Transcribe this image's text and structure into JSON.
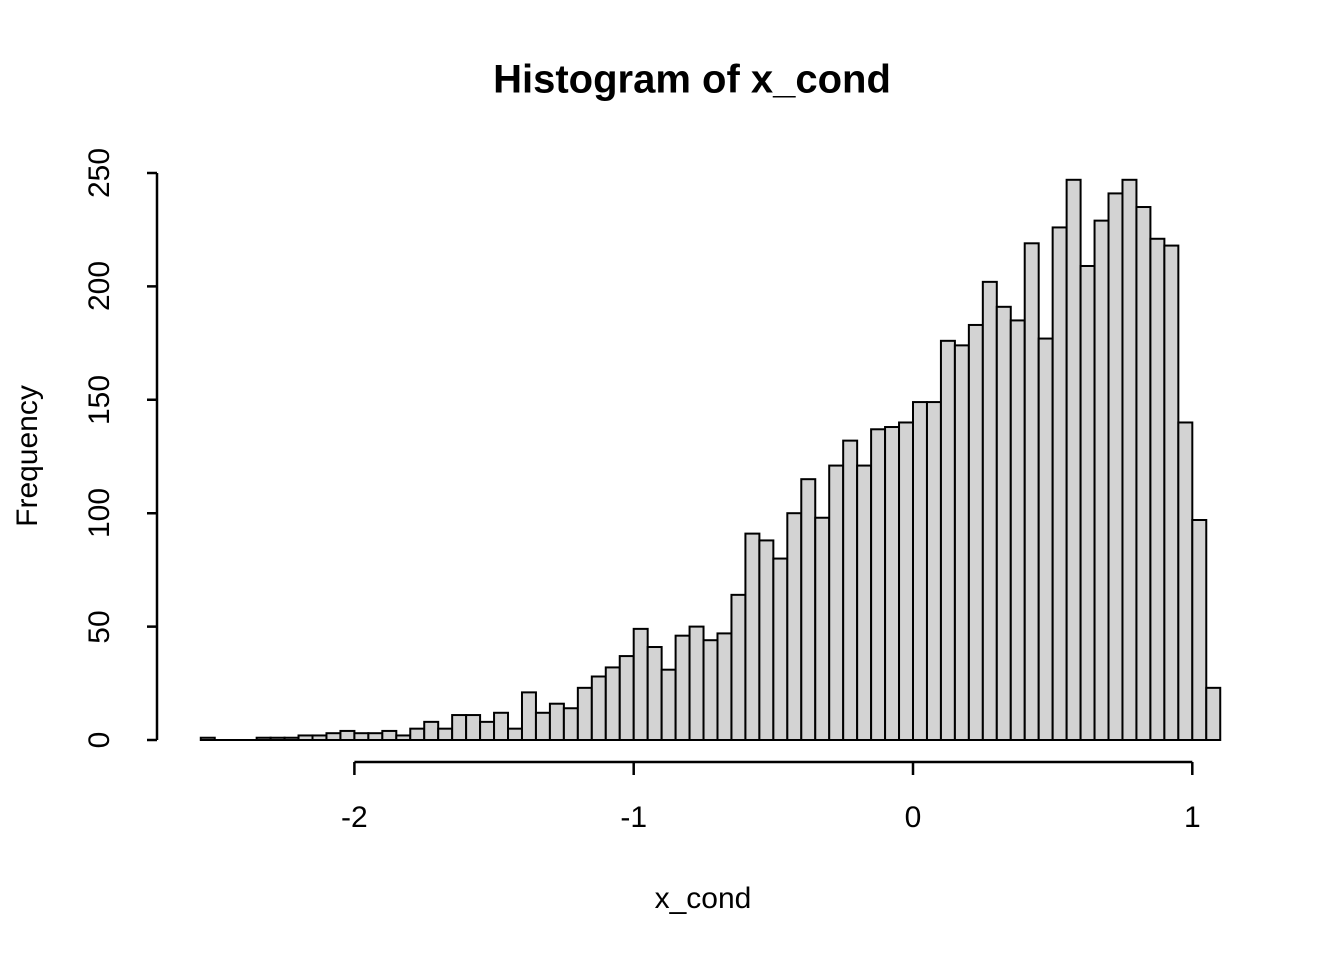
{
  "title": "Histogram of x_cond",
  "x_axis": {
    "label": "x_cond",
    "ticks": [
      "-2",
      "-1",
      "0",
      "1"
    ],
    "tick_values": [
      -2,
      -1,
      0,
      1
    ]
  },
  "y_axis": {
    "label": "Frequency",
    "ticks": [
      "0",
      "50",
      "100",
      "150",
      "200",
      "250"
    ],
    "tick_values": [
      0,
      50,
      100,
      150,
      200,
      250
    ]
  },
  "colors": {
    "background": "#ffffff",
    "bar_fill": "#d3d3d3",
    "bar_border": "#000000",
    "axis": "#000000",
    "text": "#000000"
  },
  "chart_data": {
    "type": "bar",
    "title": "Histogram of x_cond",
    "xlabel": "x_cond",
    "ylabel": "Frequency",
    "bin_start": -2.55,
    "bin_width": 0.05,
    "xlim": [
      -2.55,
      1.1
    ],
    "ylim": [
      0,
      250
    ],
    "x_ticks": [
      -2,
      -1,
      0,
      1
    ],
    "y_ticks": [
      0,
      50,
      100,
      150,
      200,
      250
    ],
    "grid": false,
    "legend": false,
    "counts": [
      1,
      0,
      0,
      0,
      1,
      1,
      1,
      2,
      2,
      3,
      4,
      3,
      3,
      4,
      2,
      5,
      8,
      5,
      11,
      11,
      8,
      12,
      5,
      21,
      12,
      16,
      14,
      23,
      28,
      32,
      37,
      49,
      41,
      31,
      46,
      50,
      44,
      47,
      64,
      91,
      88,
      80,
      100,
      115,
      98,
      121,
      132,
      121,
      137,
      138,
      140,
      149,
      149,
      176,
      174,
      183,
      202,
      191,
      185,
      219,
      177,
      226,
      247,
      209,
      229,
      241,
      247,
      235,
      221,
      218,
      140,
      97,
      23
    ]
  }
}
